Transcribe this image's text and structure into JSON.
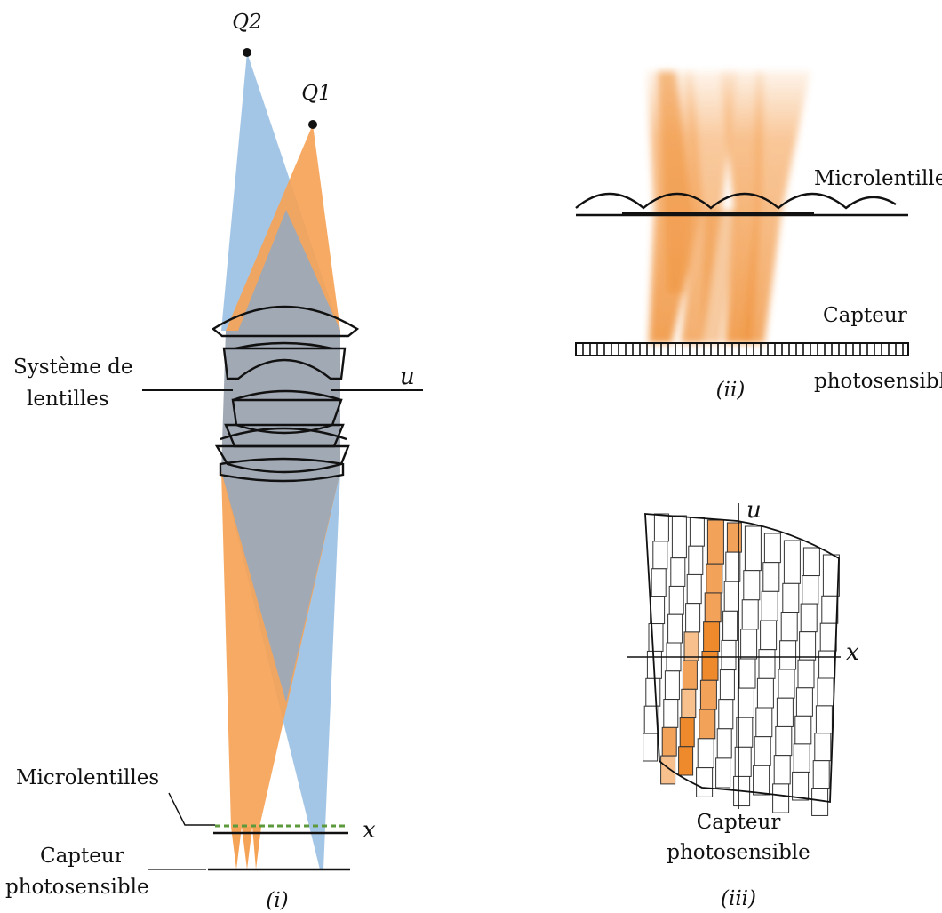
{
  "colors": {
    "orange": "#F5A357",
    "blue": "#A4C6E6",
    "overlap": "#A1A9B4",
    "green_dash": "#5C9A3C",
    "cell_light": "#F7C08C",
    "cell_mid": "#F3A25A",
    "cell_dark": "#EE8A2C"
  },
  "panel_i": {
    "point_q2": "Q2",
    "point_q1": "Q1",
    "lens_label_line1": "Système de",
    "lens_label_line2": "lentilles",
    "u_axis": "u",
    "x_axis": "x",
    "microlens_label": "Microlentilles",
    "sensor_label_line1": "Capteur",
    "sensor_label_line2": "photosensible",
    "caption": "(i)"
  },
  "panel_ii": {
    "microlens_label": "Microlentilles",
    "sensor_label_line1": "Capteur",
    "sensor_label_line2": "photosensible",
    "caption": "(ii)"
  },
  "panel_iii": {
    "u_axis": "u",
    "x_axis": "x",
    "sensor_label_line1": "Capteur",
    "sensor_label_line2": "photosensible",
    "caption": "(iii)"
  }
}
